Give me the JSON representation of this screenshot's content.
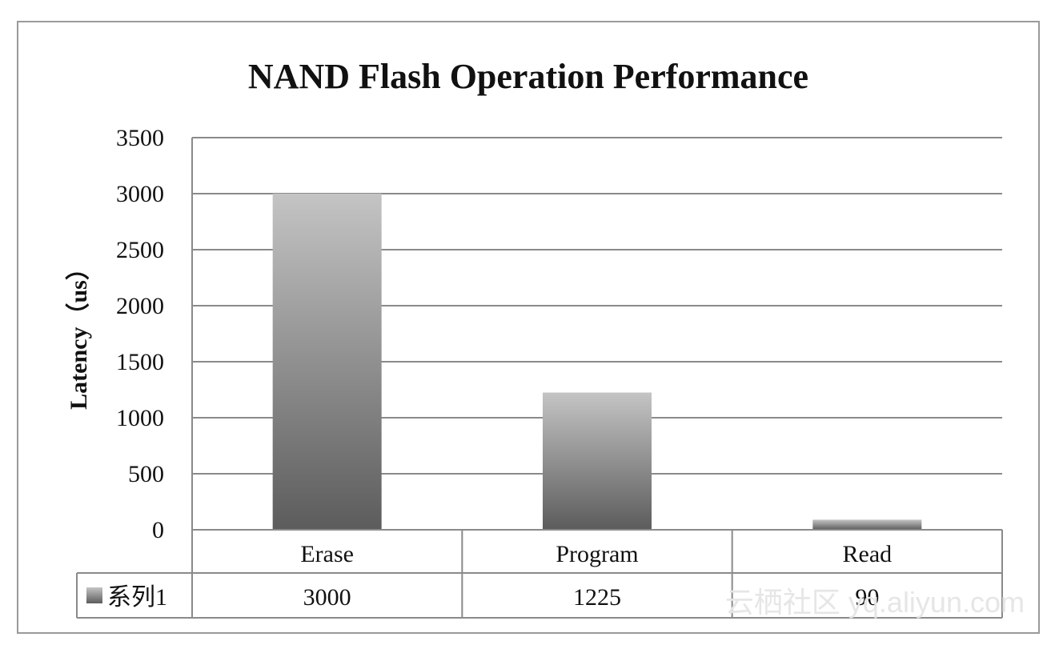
{
  "chart_data": {
    "type": "bar",
    "title": "NAND Flash Operation Performance",
    "xlabel": "",
    "ylabel": "Latency（us）",
    "categories": [
      "Erase",
      "Program",
      "Read"
    ],
    "series": [
      {
        "name": "系列1",
        "values": [
          3000,
          1225,
          90
        ]
      }
    ],
    "ylim": [
      0,
      3500
    ],
    "yticks": [
      0,
      500,
      1000,
      1500,
      2000,
      2500,
      3000,
      3500
    ],
    "grid": true,
    "legend": "data-table-left",
    "data_table": {
      "row_label": "系列1",
      "cells": [
        "3000",
        "1225",
        "90"
      ]
    },
    "colors": {
      "bar_top": "#c4c4c4",
      "bar_bottom": "#5c5c5c",
      "grid": "#8a8a8a",
      "frame": "#9a9a9a"
    }
  },
  "watermark": "云栖社区 yq.aliyun.com"
}
